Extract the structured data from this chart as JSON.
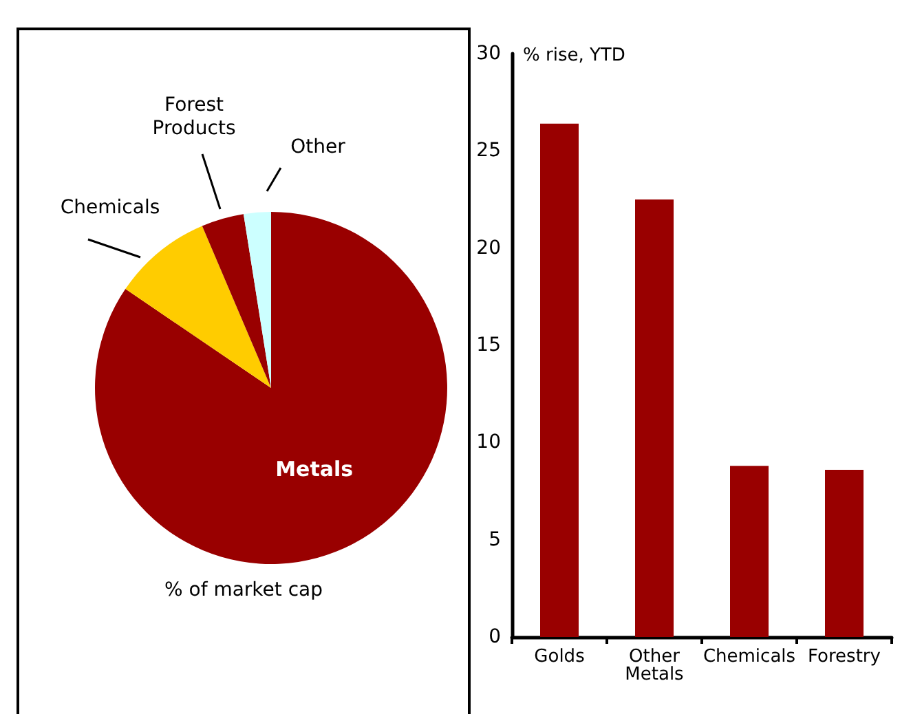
{
  "chart_data": [
    {
      "type": "pie",
      "categories": [
        "Metals",
        "Chemicals",
        "Forest Products",
        "Other"
      ],
      "values": [
        84.5,
        9.1,
        3.9,
        2.5
      ],
      "colors": [
        "#990000",
        "#ffcc00",
        "#990000",
        "#ccffff"
      ],
      "annotations": [
        "% of market cap"
      ]
    },
    {
      "type": "bar",
      "categories": [
        "Golds",
        "Other Metals",
        "Chemicals",
        "Forestry"
      ],
      "values": [
        26.4,
        22.5,
        8.8,
        8.6
      ],
      "color": "#990000",
      "ylabel": "% rise, YTD",
      "ylim": [
        0,
        30
      ],
      "yticks": [
        0,
        5,
        10,
        15,
        20,
        25,
        30
      ],
      "grid": false
    }
  ]
}
